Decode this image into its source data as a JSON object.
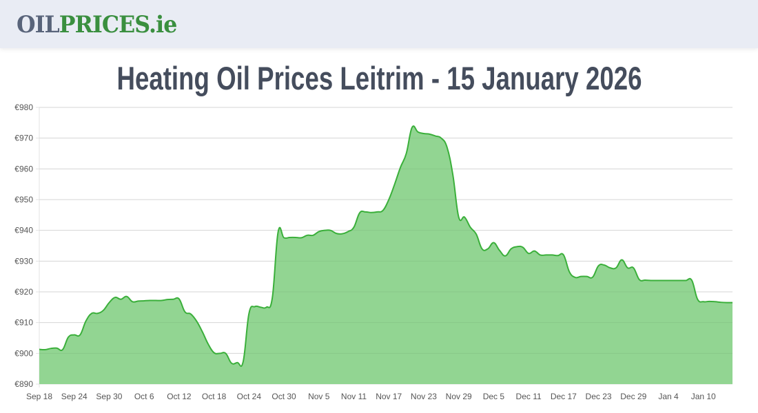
{
  "logo": {
    "part1": "OIL",
    "part2": "PRICES.ie"
  },
  "page_title": "Heating Oil Prices Leitrim - 15 January 2026",
  "colors": {
    "line": "#3aaf3a",
    "fill": "#92d592",
    "grid": "#e3e3e3",
    "title": "#454d5d",
    "logo_grey": "#59647a",
    "logo_green": "#3a8f3f",
    "header_bg": "#e9ecf4"
  },
  "chart_data": {
    "type": "area",
    "title": "",
    "xlabel": "",
    "ylabel": "",
    "ylim": [
      890,
      980
    ],
    "grid": true,
    "legend": "none",
    "y_ticks": [
      "€890",
      "€900",
      "€910",
      "€920",
      "€930",
      "€940",
      "€950",
      "€960",
      "€970",
      "€980"
    ],
    "y_tick_values": [
      890,
      900,
      910,
      920,
      930,
      940,
      950,
      960,
      970,
      980
    ],
    "x_ticks": [
      "Sep 18",
      "Sep 24",
      "Sep 30",
      "Oct 6",
      "Oct 12",
      "Oct 18",
      "Oct 24",
      "Oct 30",
      "Nov 5",
      "Nov 11",
      "Nov 17",
      "Nov 23",
      "Nov 29",
      "Dec 5",
      "Dec 11",
      "Dec 17",
      "Dec 23",
      "Dec 29",
      "Jan 4",
      "Jan 10"
    ],
    "x": [
      "Sep 18",
      "Sep 19",
      "Sep 20",
      "Sep 21",
      "Sep 22",
      "Sep 23",
      "Sep 24",
      "Sep 25",
      "Sep 26",
      "Sep 27",
      "Sep 28",
      "Sep 29",
      "Sep 30",
      "Oct 1",
      "Oct 2",
      "Oct 3",
      "Oct 4",
      "Oct 5",
      "Oct 6",
      "Oct 7",
      "Oct 8",
      "Oct 9",
      "Oct 10",
      "Oct 11",
      "Oct 12",
      "Oct 13",
      "Oct 14",
      "Oct 15",
      "Oct 16",
      "Oct 17",
      "Oct 18",
      "Oct 19",
      "Oct 20",
      "Oct 21",
      "Oct 22",
      "Oct 23",
      "Oct 24",
      "Oct 25",
      "Oct 26",
      "Oct 27",
      "Oct 28",
      "Oct 29",
      "Oct 30",
      "Oct 31",
      "Nov 1",
      "Nov 2",
      "Nov 3",
      "Nov 4",
      "Nov 5",
      "Nov 6",
      "Nov 7",
      "Nov 8",
      "Nov 9",
      "Nov 10",
      "Nov 11",
      "Nov 12",
      "Nov 13",
      "Nov 14",
      "Nov 15",
      "Nov 16",
      "Nov 17",
      "Nov 18",
      "Nov 19",
      "Nov 20",
      "Nov 21",
      "Nov 22",
      "Nov 23",
      "Nov 24",
      "Nov 25",
      "Nov 26",
      "Nov 27",
      "Nov 28",
      "Nov 29",
      "Nov 30",
      "Dec 1",
      "Dec 2",
      "Dec 3",
      "Dec 4",
      "Dec 5",
      "Dec 6",
      "Dec 7",
      "Dec 8",
      "Dec 9",
      "Dec 10",
      "Dec 11",
      "Dec 12",
      "Dec 13",
      "Dec 14",
      "Dec 15",
      "Dec 16",
      "Dec 17",
      "Dec 18",
      "Dec 19",
      "Dec 20",
      "Dec 21",
      "Dec 22",
      "Dec 23",
      "Dec 24",
      "Dec 25",
      "Dec 26",
      "Dec 27",
      "Dec 28",
      "Dec 29",
      "Dec 30",
      "Dec 31",
      "Jan 1",
      "Jan 2",
      "Jan 3",
      "Jan 4",
      "Jan 5",
      "Jan 6",
      "Jan 7",
      "Jan 8",
      "Jan 9",
      "Jan 10",
      "Jan 11",
      "Jan 12",
      "Jan 13",
      "Jan 14",
      "Jan 15"
    ],
    "values": [
      901.3,
      901.2,
      901.6,
      901.7,
      901.2,
      905.3,
      906,
      906,
      910.5,
      913,
      913,
      914,
      916.5,
      918.2,
      917.6,
      918.5,
      916.8,
      917,
      917.1,
      917.2,
      917.2,
      917.2,
      917.5,
      917.6,
      917.7,
      913.5,
      912.8,
      910.5,
      907,
      903,
      900.2,
      900,
      900,
      896.8,
      897,
      897.3,
      913,
      915.2,
      915,
      915,
      918,
      939.5,
      937.6,
      937.7,
      937.7,
      937.6,
      938.4,
      938.4,
      939.6,
      940,
      940,
      939,
      938.9,
      939.6,
      941,
      945.7,
      946,
      945.8,
      946,
      946.5,
      950,
      955,
      960.5,
      965,
      973.5,
      972,
      971.5,
      971.3,
      970.7,
      970,
      967,
      958,
      944.3,
      944.3,
      941,
      938.8,
      934,
      934,
      936,
      933.5,
      931.7,
      934,
      934.7,
      934.5,
      932.5,
      933.3,
      932,
      932,
      932,
      931.8,
      932,
      926.5,
      924.7,
      925,
      925,
      924.8,
      928.5,
      928.7,
      927.8,
      927.8,
      930.4,
      927.8,
      927.8,
      924,
      923.8,
      923.7,
      923.7,
      923.7,
      923.7,
      923.7,
      923.7,
      923.7,
      923.8,
      917.6,
      916.8,
      916.9,
      916.8,
      916.6,
      916.5,
      916.5
    ]
  }
}
